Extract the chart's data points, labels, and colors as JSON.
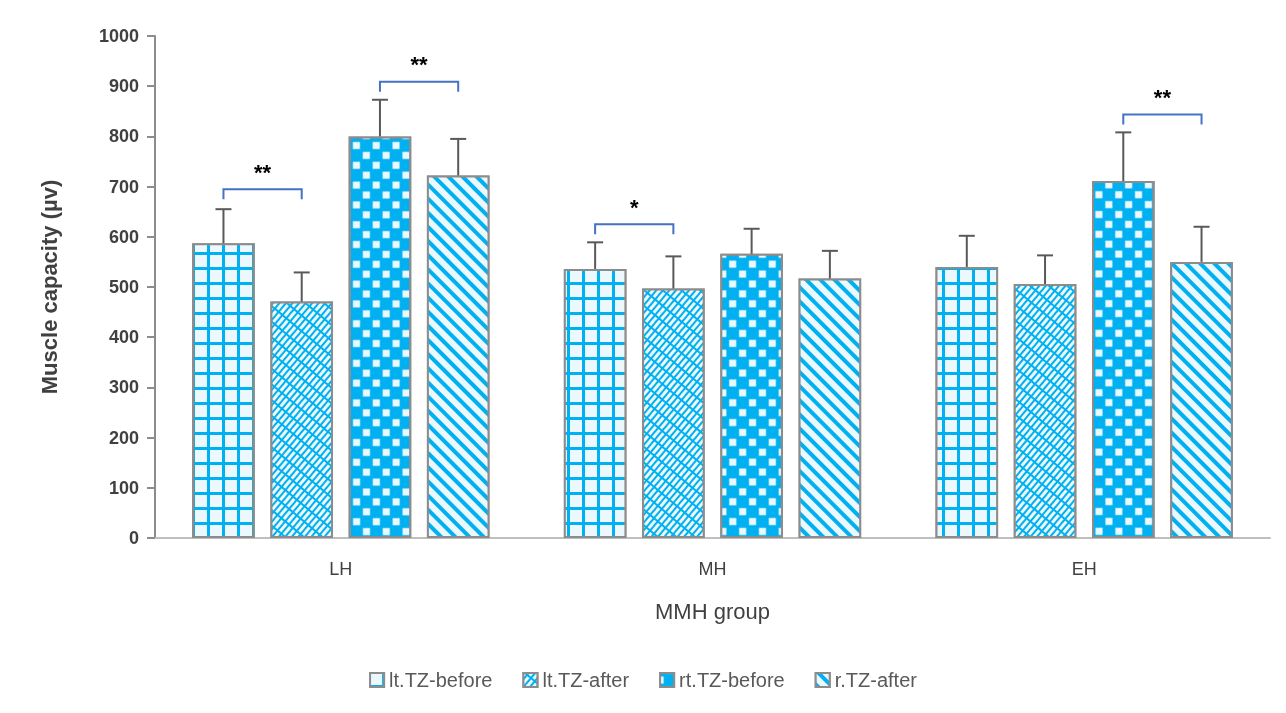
{
  "chart_data": {
    "type": "bar",
    "xlabel": "MMH group",
    "ylabel": "Muscle capacity (µv)",
    "categories": [
      "LH",
      "MH",
      "EH"
    ],
    "series": [
      {
        "name": "lt.TZ-before",
        "color": "#00b0f0",
        "values": [
          587,
          536,
          540
        ],
        "errors": [
          68,
          53,
          62
        ]
      },
      {
        "name": "lt.TZ-after",
        "color": "#00b0f0",
        "values": [
          471,
          497,
          506
        ],
        "errors": [
          58,
          64,
          57
        ]
      },
      {
        "name": "rt.TZ-before",
        "color": "#00b0f0",
        "values": [
          800,
          566,
          711
        ],
        "errors": [
          73,
          50,
          97
        ]
      },
      {
        "name": "r.TZ-after",
        "color": "#00b0f0",
        "values": [
          722,
          517,
          550
        ],
        "errors": [
          73,
          55,
          70
        ]
      }
    ],
    "ylim": [
      0,
      1000
    ],
    "yticks": [
      0,
      100,
      200,
      300,
      400,
      500,
      600,
      700,
      800,
      900,
      1000
    ],
    "grid": false,
    "legend": "bottom",
    "annotations": [
      "**",
      "**",
      "*",
      "**"
    ]
  }
}
